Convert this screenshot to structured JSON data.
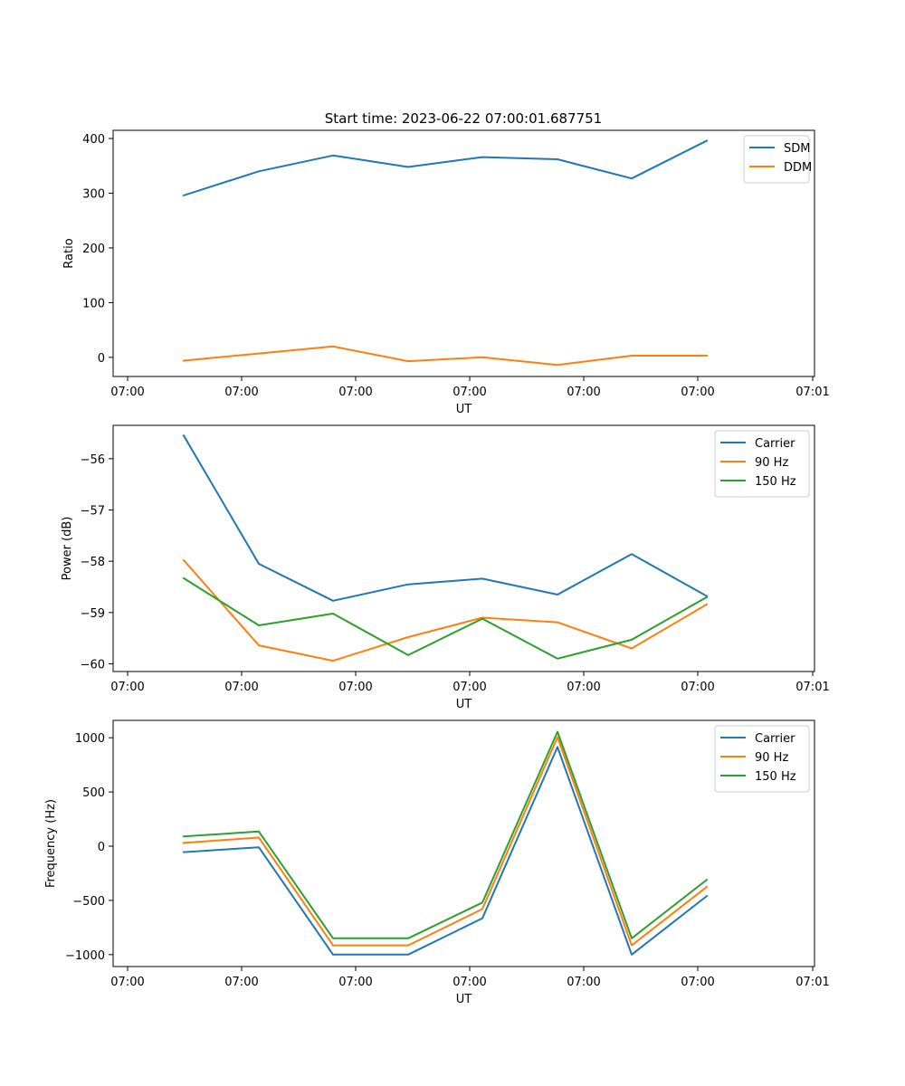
{
  "figure_title": "Start time: 2023-06-22 07:00:01.687751",
  "colors": {
    "c0": "#1f77b4",
    "c1": "#ff7f0e",
    "c2": "#2ca02c"
  },
  "x_tick_labels": [
    "07:00",
    "07:00",
    "07:00",
    "07:00",
    "07:00",
    "07:00",
    "07:00",
    "07:01"
  ],
  "chart_data": [
    {
      "type": "line",
      "xlabel": "UT",
      "ylabel": "Ratio",
      "ylim": [
        -35,
        415
      ],
      "yticks": [
        0,
        100,
        200,
        300,
        400
      ],
      "grid": false,
      "legend_position": "upper-right",
      "series": [
        {
          "name": "SDM",
          "color": "#1f77b4",
          "values": [
            296,
            340,
            369,
            348,
            366,
            362,
            327,
            396
          ]
        },
        {
          "name": "DDM",
          "color": "#ff7f0e",
          "values": [
            -6,
            7,
            20,
            -7,
            0,
            -14,
            3,
            3
          ]
        }
      ]
    },
    {
      "type": "line",
      "xlabel": "UT",
      "ylabel": "Power (dB)",
      "ylim": [
        -60.15,
        -55.35
      ],
      "yticks": [
        -56,
        -57,
        -58,
        -59,
        -60
      ],
      "grid": false,
      "legend_position": "upper-right",
      "series": [
        {
          "name": "Carrier",
          "color": "#1f77b4",
          "values": [
            -55.55,
            -58.05,
            -58.77,
            -58.45,
            -58.34,
            -58.65,
            -57.86,
            -58.68
          ]
        },
        {
          "name": "90 Hz",
          "color": "#ff7f0e",
          "values": [
            -57.98,
            -59.64,
            -59.94,
            -59.48,
            -59.1,
            -59.19,
            -59.7,
            -58.84
          ]
        },
        {
          "name": "150 Hz",
          "color": "#2ca02c",
          "values": [
            -58.33,
            -59.25,
            -59.02,
            -59.83,
            -59.12,
            -59.9,
            -59.53,
            -58.7
          ]
        }
      ]
    },
    {
      "type": "line",
      "xlabel": "UT",
      "ylabel": "Frequency (Hz)",
      "ylim": [
        -1110,
        1160
      ],
      "yticks": [
        1000,
        500,
        0,
        -500,
        -1000
      ],
      "grid": false,
      "legend_position": "upper-right",
      "series": [
        {
          "name": "Carrier",
          "color": "#1f77b4",
          "values": [
            -55,
            -10,
            -1000,
            -1000,
            -665,
            915,
            -1000,
            -460
          ]
        },
        {
          "name": "90 Hz",
          "color": "#ff7f0e",
          "values": [
            30,
            80,
            -915,
            -915,
            -580,
            1005,
            -915,
            -375
          ]
        },
        {
          "name": "150 Hz",
          "color": "#2ca02c",
          "values": [
            90,
            135,
            -850,
            -850,
            -520,
            1055,
            -850,
            -310
          ]
        }
      ]
    }
  ]
}
